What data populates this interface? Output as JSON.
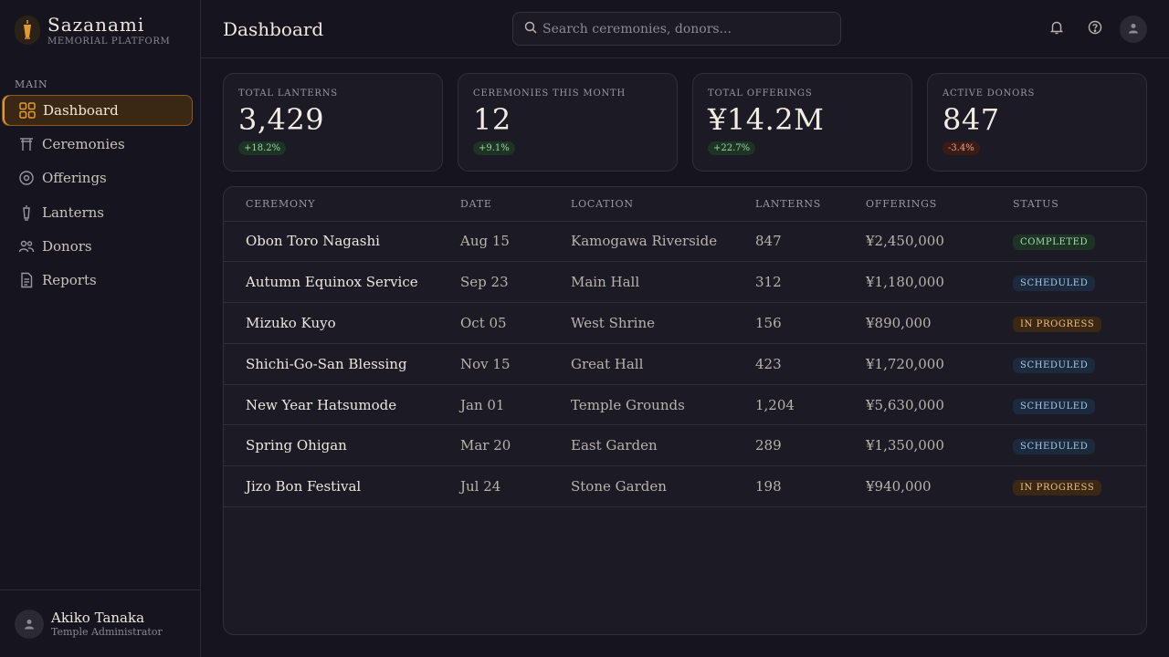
{
  "brand": {
    "name": "Sazanami",
    "subtitle": "MEMORIAL PLATFORM"
  },
  "sidebar": {
    "section": "MAIN",
    "items": [
      {
        "label": "Dashboard",
        "icon": "grid-icon",
        "active": true
      },
      {
        "label": "Ceremonies",
        "icon": "torii-icon",
        "active": false
      },
      {
        "label": "Offerings",
        "icon": "coin-icon",
        "active": false
      },
      {
        "label": "Lanterns",
        "icon": "lantern-icon",
        "active": false
      },
      {
        "label": "Donors",
        "icon": "users-icon",
        "active": false
      },
      {
        "label": "Reports",
        "icon": "document-icon",
        "active": false
      }
    ]
  },
  "user": {
    "name": "Akiko Tanaka",
    "role": "Temple Administrator"
  },
  "header": {
    "title": "Dashboard",
    "search_placeholder": "Search ceremonies, donors..."
  },
  "stats": [
    {
      "label": "TOTAL LANTERNS",
      "value": "3,429",
      "change": "+18.2%",
      "trend": "up"
    },
    {
      "label": "CEREMONIES THIS MONTH",
      "value": "12",
      "change": "+9.1%",
      "trend": "up"
    },
    {
      "label": "TOTAL OFFERINGS",
      "value": "¥14.2M",
      "change": "+22.7%",
      "trend": "up"
    },
    {
      "label": "ACTIVE DONORS",
      "value": "847",
      "change": "-3.4%",
      "trend": "down"
    }
  ],
  "table": {
    "columns": [
      "CEREMONY",
      "DATE",
      "LOCATION",
      "LANTERNS",
      "OFFERINGS",
      "STATUS"
    ],
    "rows": [
      {
        "ceremony": "Obon Toro Nagashi",
        "date": "Aug 15",
        "location": "Kamogawa Riverside",
        "lanterns": "847",
        "offerings": "¥2,450,000",
        "status": "COMPLETED"
      },
      {
        "ceremony": "Autumn Equinox Service",
        "date": "Sep 23",
        "location": "Main Hall",
        "lanterns": "312",
        "offerings": "¥1,180,000",
        "status": "SCHEDULED"
      },
      {
        "ceremony": "Mizuko Kuyo",
        "date": "Oct 05",
        "location": "West Shrine",
        "lanterns": "156",
        "offerings": "¥890,000",
        "status": "IN PROGRESS"
      },
      {
        "ceremony": "Shichi-Go-San Blessing",
        "date": "Nov 15",
        "location": "Great Hall",
        "lanterns": "423",
        "offerings": "¥1,720,000",
        "status": "SCHEDULED"
      },
      {
        "ceremony": "New Year Hatsumode",
        "date": "Jan 01",
        "location": "Temple Grounds",
        "lanterns": "1,204",
        "offerings": "¥5,630,000",
        "status": "SCHEDULED"
      },
      {
        "ceremony": "Spring Ohigan",
        "date": "Mar 20",
        "location": "East Garden",
        "lanterns": "289",
        "offerings": "¥1,350,000",
        "status": "SCHEDULED"
      },
      {
        "ceremony": "Jizo Bon Festival",
        "date": "Jul 24",
        "location": "Stone Garden",
        "lanterns": "198",
        "offerings": "¥940,000",
        "status": "IN PROGRESS"
      }
    ]
  },
  "colors": {
    "accent": "#e59a2e",
    "background": "#16151f",
    "card": "#1b1a25",
    "positive": "#9ed4a8",
    "negative": "#e8a08c"
  }
}
